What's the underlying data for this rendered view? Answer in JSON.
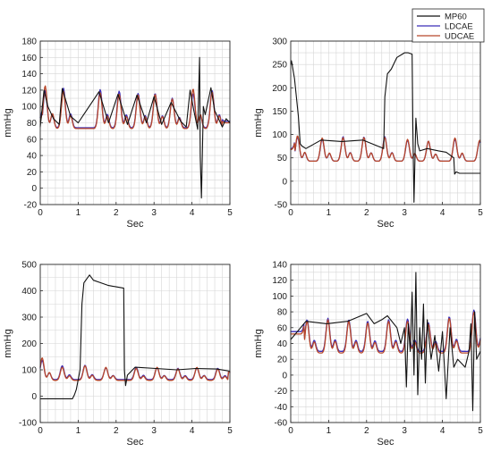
{
  "legend": {
    "entries": [
      {
        "name": "MP60",
        "color": "#111111"
      },
      {
        "name": "LDCAE",
        "color": "#3b2db8"
      },
      {
        "name": "UDCAE",
        "color": "#b8472a"
      }
    ]
  },
  "chart_data": [
    {
      "type": "line",
      "xlabel": "Sec",
      "ylabel": "mmHg",
      "xlim": [
        0,
        5
      ],
      "ylim": [
        -20,
        180
      ],
      "xticks": [
        0,
        1,
        2,
        3,
        4,
        5
      ],
      "yticks": [
        -20,
        0,
        20,
        40,
        60,
        80,
        100,
        120,
        140,
        160,
        180
      ],
      "grid": true,
      "beat_times": [
        0.1,
        0.58,
        1.55,
        2.05,
        2.55,
        3.0,
        3.45,
        4.0,
        4.5
      ],
      "series": [
        {
          "name": "MP60",
          "x": [
            0,
            0.1,
            0.2,
            0.35,
            0.5,
            0.58,
            0.8,
            1.0,
            1.55,
            1.8,
            2.05,
            2.3,
            2.55,
            2.8,
            3.0,
            3.2,
            3.45,
            3.7,
            3.85,
            3.95,
            4.05,
            4.15,
            4.2,
            4.22,
            4.25,
            4.3,
            4.35,
            4.5,
            4.6,
            4.7,
            4.8,
            4.9,
            5.0
          ],
          "y": [
            75,
            120,
            100,
            85,
            78,
            122,
            88,
            80,
            118,
            80,
            115,
            78,
            114,
            80,
            112,
            78,
            105,
            82,
            75,
            120,
            95,
            72,
            160,
            40,
            -12,
            100,
            90,
            123,
            95,
            85,
            75,
            85,
            80
          ]
        },
        {
          "name": "LDCAE",
          "x": [
            0,
            0.1,
            0.58,
            1.55,
            2.05,
            2.55,
            3.0,
            3.45,
            4.0,
            4.5,
            5.0
          ],
          "y": [
            85,
            122,
            125,
            123,
            121,
            118,
            118,
            112,
            118,
            122,
            82
          ]
        },
        {
          "name": "UDCAE",
          "x": [
            0,
            0.1,
            0.58,
            1.55,
            2.05,
            2.55,
            3.0,
            3.45,
            4.0,
            4.5,
            5.0
          ],
          "y": [
            80,
            128,
            121,
            119,
            117,
            116,
            117,
            111,
            124,
            120,
            80
          ]
        }
      ]
    },
    {
      "type": "line",
      "xlabel": "Sec",
      "ylabel": "mmHg",
      "xlim": [
        0,
        5
      ],
      "ylim": [
        -50,
        300
      ],
      "xticks": [
        0,
        1,
        2,
        3,
        4,
        5
      ],
      "yticks": [
        -50,
        0,
        50,
        100,
        150,
        200,
        250,
        300
      ],
      "grid": true,
      "beat_times": [
        0.15,
        0.8,
        1.35,
        1.9,
        2.45,
        3.05,
        3.6,
        4.3,
        4.95
      ],
      "series": [
        {
          "name": "MP60",
          "x": [
            0,
            0.02,
            0.1,
            0.2,
            0.25,
            0.3,
            0.4,
            0.8,
            1.35,
            1.9,
            2.45,
            2.48,
            2.55,
            2.65,
            2.8,
            3.0,
            3.1,
            3.2,
            3.22,
            3.25,
            3.3,
            3.35,
            3.4,
            3.6,
            3.9,
            4.1,
            4.3,
            4.32,
            4.36,
            4.45,
            5.0
          ],
          "y": [
            250,
            258,
            220,
            140,
            80,
            75,
            70,
            88,
            85,
            88,
            70,
            180,
            230,
            240,
            265,
            275,
            275,
            272,
            120,
            -45,
            135,
            80,
            65,
            70,
            65,
            62,
            50,
            15,
            20,
            17,
            17
          ]
        },
        {
          "name": "LDCAE",
          "x": [
            0,
            0.15,
            0.8,
            1.35,
            1.9,
            2.45,
            3.05,
            3.6,
            4.3,
            4.95,
            5.0
          ],
          "y": [
            70,
            97,
            92,
            98,
            97,
            98,
            90,
            88,
            92,
            88,
            70
          ]
        },
        {
          "name": "UDCAE",
          "x": [
            0,
            0.15,
            0.8,
            1.35,
            1.9,
            2.45,
            3.05,
            3.6,
            4.3,
            4.95,
            5.0
          ],
          "y": [
            68,
            100,
            95,
            96,
            96,
            96,
            92,
            88,
            95,
            90,
            68
          ]
        }
      ]
    },
    {
      "type": "line",
      "xlabel": "Sec",
      "ylabel": "mmHg",
      "xlim": [
        0,
        5
      ],
      "ylim": [
        -100,
        500
      ],
      "xticks": [
        0,
        1,
        2,
        3,
        4,
        5
      ],
      "yticks": [
        -100,
        0,
        100,
        200,
        300,
        400,
        500
      ],
      "grid": true,
      "beat_times": [
        0.02,
        0.55,
        1.15,
        1.7,
        2.5,
        3.05,
        3.6,
        4.1,
        4.65
      ],
      "series": [
        {
          "name": "MP60",
          "x": [
            0,
            0.3,
            0.85,
            0.9,
            0.95,
            1.05,
            1.1,
            1.15,
            1.2,
            1.3,
            1.4,
            1.6,
            1.8,
            2.0,
            2.2,
            2.22,
            2.25,
            2.3,
            2.5,
            3.05,
            3.6,
            4.1,
            4.65,
            5.0
          ],
          "y": [
            -10,
            -10,
            -10,
            5,
            25,
            100,
            350,
            430,
            440,
            460,
            440,
            430,
            420,
            415,
            410,
            100,
            40,
            80,
            110,
            105,
            100,
            105,
            103,
            95
          ]
        },
        {
          "name": "LDCAE",
          "x": [
            0,
            0.02,
            0.55,
            1.15,
            1.7,
            2.5,
            3.05,
            3.6,
            4.1,
            4.65,
            5.0
          ],
          "y": [
            80,
            140,
            118,
            120,
            110,
            112,
            110,
            108,
            110,
            108,
            90
          ]
        },
        {
          "name": "UDCAE",
          "x": [
            0,
            0.02,
            0.55,
            1.15,
            1.7,
            2.5,
            3.05,
            3.6,
            4.1,
            4.65,
            5.0
          ],
          "y": [
            80,
            150,
            112,
            118,
            112,
            108,
            112,
            106,
            112,
            105,
            90
          ]
        }
      ]
    },
    {
      "type": "line",
      "xlabel": "Sec",
      "ylabel": "mmHg",
      "xlim": [
        0,
        5
      ],
      "ylim": [
        -60,
        140
      ],
      "xticks": [
        0,
        1,
        2,
        3,
        4,
        5
      ],
      "yticks": [
        -60,
        -40,
        -20,
        0,
        20,
        40,
        60,
        80,
        100,
        120,
        140
      ],
      "grid": true,
      "beat_times": [
        0.4,
        0.95,
        1.5,
        2.0,
        2.55,
        3.05,
        3.6,
        4.15,
        4.8
      ],
      "series": [
        {
          "name": "MP60",
          "x": [
            0,
            0.4,
            0.95,
            1.5,
            2.0,
            2.2,
            2.4,
            2.55,
            2.8,
            2.9,
            3.0,
            3.05,
            3.1,
            3.15,
            3.2,
            3.25,
            3.3,
            3.35,
            3.4,
            3.45,
            3.5,
            3.55,
            3.6,
            3.7,
            3.8,
            3.9,
            4.0,
            4.1,
            4.2,
            4.3,
            4.4,
            4.5,
            4.6,
            4.7,
            4.75,
            4.8,
            4.85,
            4.9,
            5.0
          ],
          "y": [
            45,
            68,
            65,
            68,
            78,
            65,
            70,
            75,
            60,
            40,
            60,
            -15,
            65,
            30,
            105,
            0,
            130,
            -25,
            60,
            20,
            90,
            -10,
            70,
            20,
            50,
            5,
            55,
            -30,
            60,
            10,
            20,
            15,
            10,
            30,
            65,
            -45,
            80,
            20,
            30
          ]
        },
        {
          "name": "LDCAE",
          "x": [
            0,
            0.4,
            0.95,
            1.5,
            2.0,
            2.55,
            3.05,
            3.6,
            4.15,
            4.8,
            5.0
          ],
          "y": [
            55,
            72,
            74,
            72,
            70,
            72,
            73,
            68,
            76,
            85,
            60
          ]
        },
        {
          "name": "UDCAE",
          "x": [
            0,
            0.4,
            0.95,
            1.5,
            2.0,
            2.55,
            3.05,
            3.6,
            4.15,
            4.8,
            5.0
          ],
          "y": [
            52,
            70,
            72,
            70,
            68,
            70,
            70,
            66,
            74,
            82,
            58
          ]
        }
      ]
    }
  ]
}
